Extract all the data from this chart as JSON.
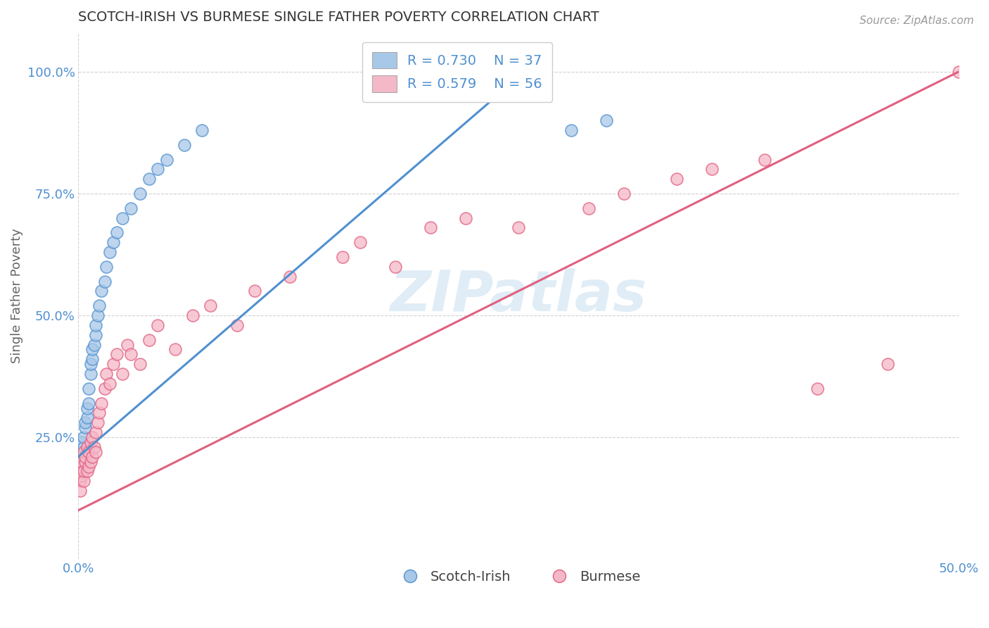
{
  "title": "SCOTCH-IRISH VS BURMESE SINGLE FATHER POVERTY CORRELATION CHART",
  "source": "Source: ZipAtlas.com",
  "ylabel": "Single Father Poverty",
  "xlim": [
    0.0,
    0.5
  ],
  "ylim": [
    0.0,
    1.08
  ],
  "ytick_labels": [
    "25.0%",
    "50.0%",
    "75.0%",
    "100.0%"
  ],
  "ytick_vals": [
    0.25,
    0.5,
    0.75,
    1.0
  ],
  "legend_R1": "R = 0.730",
  "legend_N1": "N = 37",
  "legend_R2": "R = 0.579",
  "legend_N2": "N = 56",
  "color_blue": "#a8c8e8",
  "color_pink": "#f5b8c8",
  "color_line_blue": "#5090d0",
  "color_line_pink": "#e06080",
  "scotch_irish_x": [
    0.001,
    0.001,
    0.002,
    0.002,
    0.003,
    0.003,
    0.004,
    0.004,
    0.005,
    0.005,
    0.006,
    0.006,
    0.007,
    0.007,
    0.008,
    0.008,
    0.009,
    0.01,
    0.01,
    0.011,
    0.012,
    0.013,
    0.015,
    0.016,
    0.018,
    0.02,
    0.022,
    0.025,
    0.03,
    0.035,
    0.04,
    0.045,
    0.05,
    0.06,
    0.07,
    0.28,
    0.3
  ],
  "scotch_irish_y": [
    0.2,
    0.22,
    0.21,
    0.24,
    0.23,
    0.25,
    0.27,
    0.28,
    0.29,
    0.31,
    0.32,
    0.35,
    0.38,
    0.4,
    0.41,
    0.43,
    0.44,
    0.46,
    0.48,
    0.5,
    0.52,
    0.55,
    0.57,
    0.6,
    0.63,
    0.65,
    0.67,
    0.7,
    0.72,
    0.75,
    0.78,
    0.8,
    0.82,
    0.85,
    0.88,
    0.88,
    0.9
  ],
  "burmese_x": [
    0.001,
    0.001,
    0.001,
    0.002,
    0.002,
    0.002,
    0.003,
    0.003,
    0.003,
    0.004,
    0.004,
    0.005,
    0.005,
    0.006,
    0.006,
    0.007,
    0.007,
    0.008,
    0.008,
    0.009,
    0.01,
    0.01,
    0.011,
    0.012,
    0.013,
    0.015,
    0.016,
    0.018,
    0.02,
    0.022,
    0.025,
    0.028,
    0.03,
    0.035,
    0.04,
    0.045,
    0.055,
    0.065,
    0.075,
    0.09,
    0.1,
    0.12,
    0.15,
    0.16,
    0.18,
    0.2,
    0.22,
    0.25,
    0.29,
    0.31,
    0.34,
    0.36,
    0.39,
    0.42,
    0.46,
    0.5
  ],
  "burmese_y": [
    0.18,
    0.16,
    0.14,
    0.17,
    0.19,
    0.2,
    0.16,
    0.18,
    0.22,
    0.2,
    0.21,
    0.18,
    0.23,
    0.19,
    0.22,
    0.2,
    0.24,
    0.21,
    0.25,
    0.23,
    0.22,
    0.26,
    0.28,
    0.3,
    0.32,
    0.35,
    0.38,
    0.36,
    0.4,
    0.42,
    0.38,
    0.44,
    0.42,
    0.4,
    0.45,
    0.48,
    0.43,
    0.5,
    0.52,
    0.48,
    0.55,
    0.58,
    0.62,
    0.65,
    0.6,
    0.68,
    0.7,
    0.68,
    0.72,
    0.75,
    0.78,
    0.8,
    0.82,
    0.35,
    0.4,
    1.0
  ],
  "blue_line_x0": 0.0,
  "blue_line_y0": 0.21,
  "blue_line_x1": 0.26,
  "blue_line_y1": 1.02,
  "pink_line_x0": 0.0,
  "pink_line_y0": 0.1,
  "pink_line_x1": 0.5,
  "pink_line_y1": 1.0
}
